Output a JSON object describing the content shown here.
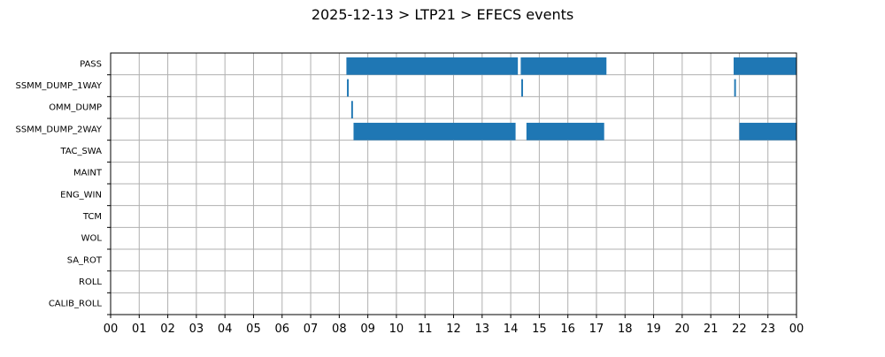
{
  "chart_data": {
    "type": "bar",
    "orientation": "horizontal-timeline",
    "title": "2025-12-13 > LTP21 > EFECS events",
    "xlabel": "",
    "ylabel": "",
    "xlim": [
      0,
      24
    ],
    "grid": true,
    "categories": [
      "PASS",
      "SSMM_DUMP_1WAY",
      "OMM_DUMP",
      "SSMM_DUMP_2WAY",
      "TAC_SWA",
      "MAINT",
      "ENG_WIN",
      "TCM",
      "WOL",
      "SA_ROT",
      "ROLL",
      "CALIB_ROLL"
    ],
    "x_ticks": [
      "00",
      "01",
      "02",
      "03",
      "04",
      "05",
      "06",
      "07",
      "08",
      "09",
      "10",
      "11",
      "12",
      "13",
      "14",
      "15",
      "16",
      "17",
      "18",
      "19",
      "20",
      "21",
      "22",
      "23",
      "00"
    ],
    "color": "#1f77b4",
    "events": [
      {
        "category": "PASS",
        "start": 8.25,
        "end": 14.25
      },
      {
        "category": "PASS",
        "start": 14.35,
        "end": 17.35
      },
      {
        "category": "PASS",
        "start": 21.8,
        "end": 24.0
      },
      {
        "category": "SSMM_DUMP_1WAY",
        "start": 8.27,
        "end": 8.33
      },
      {
        "category": "SSMM_DUMP_1WAY",
        "start": 14.37,
        "end": 14.43
      },
      {
        "category": "SSMM_DUMP_1WAY",
        "start": 21.82,
        "end": 21.88
      },
      {
        "category": "OMM_DUMP",
        "start": 8.42,
        "end": 8.48
      },
      {
        "category": "SSMM_DUMP_2WAY",
        "start": 8.5,
        "end": 14.17
      },
      {
        "category": "SSMM_DUMP_2WAY",
        "start": 14.55,
        "end": 17.27
      },
      {
        "category": "SSMM_DUMP_2WAY",
        "start": 22.0,
        "end": 24.0
      }
    ]
  }
}
